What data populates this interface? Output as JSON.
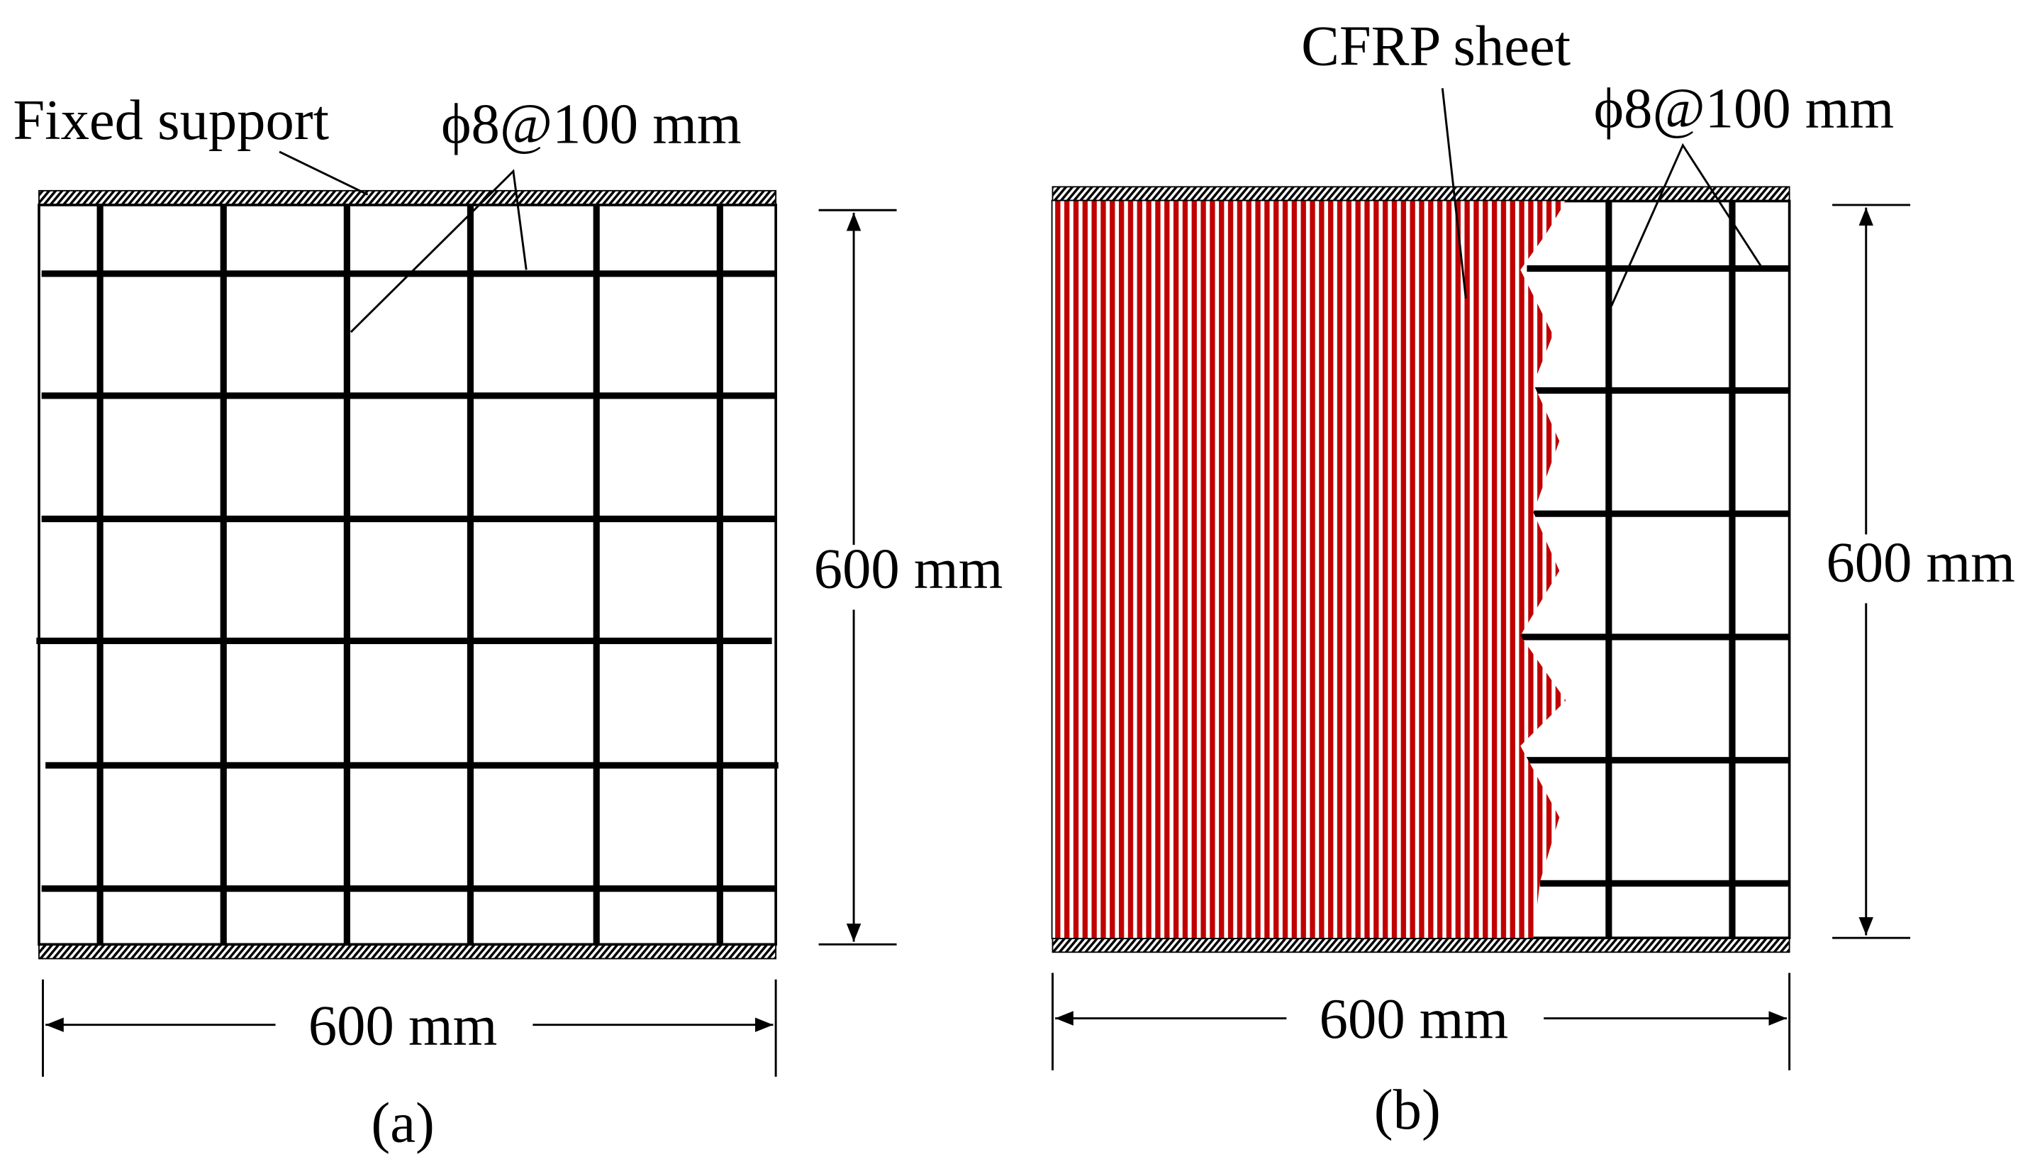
{
  "panels": [
    {
      "label": "(a)",
      "support_label": "Fixed support",
      "rebar_label": "ϕ8@100 mm",
      "height_label": "600 mm",
      "width_label": "600 mm"
    },
    {
      "label": "(b)",
      "sheet_label": "CFRP sheet",
      "rebar_label": "ϕ8@100 mm",
      "height_label": "600 mm",
      "width_label": "600 mm"
    }
  ]
}
